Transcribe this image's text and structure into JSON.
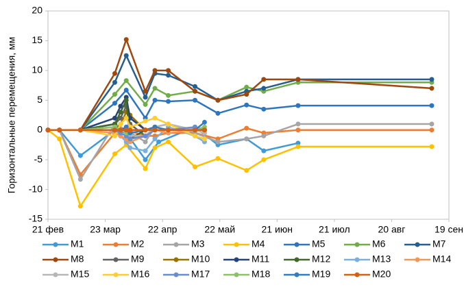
{
  "chart_data": {
    "type": "line",
    "y_label": "Горизонтальные перемещения, мм",
    "xlim": [
      0,
      210
    ],
    "xticks": [
      {
        "value": 0,
        "label": "21 фев"
      },
      {
        "value": 30,
        "label": "23 мар"
      },
      {
        "value": 60,
        "label": "22 апр"
      },
      {
        "value": 90,
        "label": "22 май"
      },
      {
        "value": 120,
        "label": "21 июн"
      },
      {
        "value": 150,
        "label": "21 июл"
      },
      {
        "value": 180,
        "label": "20 авг"
      },
      {
        "value": 210,
        "label": "19 сен"
      }
    ],
    "ylim": [
      -15,
      20
    ],
    "yticks": [
      -15,
      -10,
      -5,
      0,
      5,
      10,
      15,
      20
    ],
    "grid": false,
    "series": [
      {
        "name": "M1",
        "color": "#3e9bd8",
        "x": [
          0,
          6,
          17,
          35,
          41,
          51,
          58,
          77,
          89,
          104,
          113,
          131
        ],
        "values": [
          0,
          0,
          -4.3,
          0,
          -0.5,
          -5,
          -2,
          0.5,
          -2.5,
          -1.5,
          -3.5,
          -2.2
        ]
      },
      {
        "name": "M2",
        "color": "#ed7d31",
        "x": [
          0,
          6,
          17,
          35,
          41,
          51,
          56,
          63,
          77,
          89,
          104,
          113,
          131,
          201
        ],
        "values": [
          0,
          0,
          -7.5,
          -0.5,
          0,
          -1,
          -1,
          -0.5,
          -0.5,
          -1.5,
          0.3,
          -0.5,
          0,
          0
        ]
      },
      {
        "name": "M3",
        "color": "#a5a5a5",
        "x": [
          0,
          6,
          17,
          35,
          41,
          51,
          56,
          63,
          77,
          89,
          104,
          113,
          131,
          201
        ],
        "values": [
          0,
          0,
          -8.3,
          1,
          0,
          -2,
          0.5,
          1,
          -0.5,
          -2,
          -1.5,
          -1,
          1,
          1
        ]
      },
      {
        "name": "M4",
        "color": "#ffc000",
        "x": [
          0,
          6,
          17,
          35,
          41,
          51,
          56,
          63,
          77,
          89,
          104,
          113,
          131,
          201
        ],
        "values": [
          0,
          -1.5,
          -12.8,
          -4,
          -2.5,
          -6.5,
          -3,
          -2,
          -6.2,
          -4.8,
          -6.8,
          -5,
          -2.8,
          -2.8
        ]
      },
      {
        "name": "M5",
        "color": "#2e75c0",
        "x": [
          0,
          6,
          17,
          35,
          41,
          51,
          56,
          63,
          77,
          89,
          104,
          113,
          131,
          201
        ],
        "values": [
          0,
          0,
          0,
          4.5,
          6.7,
          2,
          5,
          4.8,
          5,
          2.8,
          4.2,
          3.5,
          4.1,
          4.1
        ]
      },
      {
        "name": "M6",
        "color": "#70ad47",
        "x": [
          0,
          6,
          17,
          35,
          41,
          51,
          56,
          63,
          77,
          89,
          104,
          113,
          131,
          201
        ],
        "values": [
          0,
          0,
          0,
          6,
          8.3,
          4.3,
          7,
          5.8,
          6.5,
          5,
          7.2,
          6.5,
          8,
          8
        ]
      },
      {
        "name": "M7",
        "color": "#255e91",
        "x": [
          0,
          6,
          17,
          35,
          41,
          51,
          56,
          63,
          77,
          89,
          104,
          113,
          131,
          201
        ],
        "values": [
          0,
          0,
          0,
          8,
          12.5,
          5.5,
          9.5,
          9.2,
          7.3,
          5,
          6.5,
          7,
          8.5,
          8.5
        ]
      },
      {
        "name": "M8",
        "color": "#9e480e",
        "x": [
          0,
          6,
          17,
          35,
          41,
          51,
          56,
          63,
          77,
          89,
          104,
          113,
          131,
          201
        ],
        "values": [
          0,
          0,
          0,
          9.5,
          15.2,
          6.5,
          10,
          10,
          6.5,
          5,
          6,
          8.5,
          8.5,
          7
        ]
      },
      {
        "name": "M9",
        "color": "#636363",
        "x": [
          0,
          6,
          17,
          35,
          38,
          41,
          43,
          51,
          56,
          63,
          77,
          82
        ],
        "values": [
          0,
          0,
          0,
          1,
          2,
          4,
          1,
          -1,
          0,
          0,
          0,
          0
        ]
      },
      {
        "name": "M10",
        "color": "#997300",
        "x": [
          0,
          6,
          17,
          35,
          38,
          41,
          43,
          51,
          56,
          63,
          77,
          82
        ],
        "values": [
          0,
          0,
          0,
          0,
          1,
          3,
          2.5,
          0,
          0,
          0,
          0,
          0
        ]
      },
      {
        "name": "M11",
        "color": "#264478",
        "x": [
          0,
          6,
          17,
          35,
          38,
          41,
          43,
          51,
          56,
          63,
          77,
          82
        ],
        "values": [
          0,
          0,
          0,
          2,
          4,
          5.5,
          2,
          0,
          0,
          0,
          0,
          0
        ]
      },
      {
        "name": "M12",
        "color": "#43682b",
        "x": [
          0,
          6,
          17,
          35,
          38,
          41,
          43,
          51,
          56,
          63,
          77,
          82
        ],
        "values": [
          0,
          0,
          0,
          1,
          3,
          5,
          -1.5,
          0,
          0,
          0,
          0,
          0
        ]
      },
      {
        "name": "M13",
        "color": "#7cafdd",
        "x": [
          0,
          6,
          17,
          35,
          38,
          41,
          43,
          51,
          56,
          63,
          77,
          82
        ],
        "values": [
          0,
          0,
          0,
          0.5,
          -1,
          -2,
          -3,
          -3.5,
          -1.5,
          0.5,
          -1,
          -2
        ]
      },
      {
        "name": "M14",
        "color": "#f1975a",
        "x": [
          0,
          6,
          17,
          35,
          38,
          41,
          43,
          51,
          56,
          63,
          77,
          82
        ],
        "values": [
          0,
          0,
          0,
          -0.5,
          -1,
          -1.5,
          -2,
          -1,
          0,
          -0.5,
          0,
          -0.5
        ]
      },
      {
        "name": "M15",
        "color": "#b7b7b7",
        "x": [
          0,
          6,
          17,
          35,
          38,
          41,
          43,
          51,
          56,
          63,
          77,
          82
        ],
        "values": [
          0,
          0,
          0,
          0.5,
          0,
          -0.5,
          -1,
          -1,
          0.5,
          1,
          0,
          -0.5
        ]
      },
      {
        "name": "M16",
        "color": "#ffcd33",
        "x": [
          0,
          6,
          17,
          35,
          38,
          41,
          43,
          51,
          56,
          63,
          77,
          82
        ],
        "values": [
          0,
          0,
          0,
          -1,
          1,
          2,
          0.5,
          1.5,
          2,
          1,
          -1,
          -1.5
        ]
      },
      {
        "name": "M17",
        "color": "#698ed0",
        "x": [
          0,
          6,
          17,
          35,
          38,
          41,
          43,
          51,
          56,
          63,
          77,
          82
        ],
        "values": [
          0,
          0,
          0,
          0,
          -0.5,
          -1,
          -1.5,
          -1,
          0,
          0,
          0.5,
          0
        ]
      },
      {
        "name": "M18",
        "color": "#8cc168",
        "x": [
          0,
          6,
          17,
          35,
          38,
          41,
          43,
          51,
          56,
          63,
          77,
          82
        ],
        "values": [
          0,
          0,
          0,
          0.5,
          0,
          -0.5,
          0,
          0,
          0.5,
          0,
          0,
          0.5
        ]
      },
      {
        "name": "M19",
        "color": "#327dc2",
        "x": [
          0,
          6,
          17,
          35,
          38,
          41,
          43,
          51,
          56,
          63,
          77,
          82
        ],
        "values": [
          0,
          0,
          0,
          0,
          0,
          0.5,
          -0.5,
          0,
          0.5,
          0,
          0,
          1.3
        ]
      },
      {
        "name": "M20",
        "color": "#d26012",
        "x": [
          0,
          6,
          17,
          35,
          38,
          41,
          43,
          51,
          56,
          63,
          77,
          82
        ],
        "values": [
          0,
          0,
          0,
          0,
          0,
          0,
          0,
          0,
          0,
          0,
          0,
          0
        ]
      }
    ]
  }
}
